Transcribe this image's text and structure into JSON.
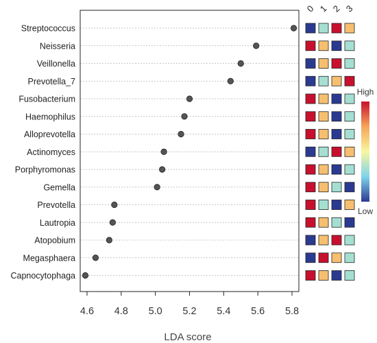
{
  "chart_data": {
    "type": "scatter",
    "subtype": "lollipop-dot-plot",
    "xlabel": "LDA score",
    "xlim": [
      4.56,
      5.84
    ],
    "xticks": [
      "4.6",
      "4.8",
      "5.0",
      "5.2",
      "5.4",
      "5.6",
      "5.8"
    ],
    "grid": true,
    "dot_color": "#555555",
    "categories": [
      "Streptococcus",
      "Neisseria",
      "Veillonella",
      "Prevotella_7",
      "Fusobacterium",
      "Haemophilus",
      "Alloprevotella",
      "Actinomyces",
      "Porphyromonas",
      "Gemella",
      "Prevotella",
      "Lautropia",
      "Atopobium",
      "Megasphaera",
      "Capnocytophaga"
    ],
    "values": [
      5.81,
      5.59,
      5.5,
      5.44,
      5.2,
      5.17,
      5.15,
      5.05,
      5.04,
      5.01,
      4.76,
      4.75,
      4.73,
      4.65,
      4.59
    ],
    "heatmap": {
      "columns": [
        "0",
        "1",
        "2",
        "3"
      ],
      "legend_high": "High",
      "legend_low": "Low",
      "colorscale": [
        "#2b3a91",
        "#7fd4ea",
        "#f7f7a0",
        "#f5a55a",
        "#c8102e"
      ],
      "levels": [
        [
          0.0,
          0.33,
          1.0,
          0.67
        ],
        [
          1.0,
          0.67,
          0.0,
          0.33
        ],
        [
          0.0,
          0.67,
          1.0,
          0.33
        ],
        [
          0.0,
          0.33,
          0.67,
          1.0
        ],
        [
          1.0,
          0.67,
          0.0,
          0.33
        ],
        [
          1.0,
          0.67,
          0.0,
          0.33
        ],
        [
          1.0,
          0.67,
          0.0,
          0.33
        ],
        [
          0.0,
          0.33,
          1.0,
          0.67
        ],
        [
          1.0,
          0.67,
          0.0,
          0.33
        ],
        [
          1.0,
          0.67,
          0.33,
          0.0
        ],
        [
          1.0,
          0.33,
          0.0,
          0.67
        ],
        [
          1.0,
          0.67,
          0.33,
          0.0
        ],
        [
          0.0,
          0.67,
          1.0,
          0.33
        ],
        [
          0.0,
          1.0,
          0.67,
          0.33
        ],
        [
          1.0,
          0.67,
          0.0,
          0.33
        ]
      ]
    }
  }
}
